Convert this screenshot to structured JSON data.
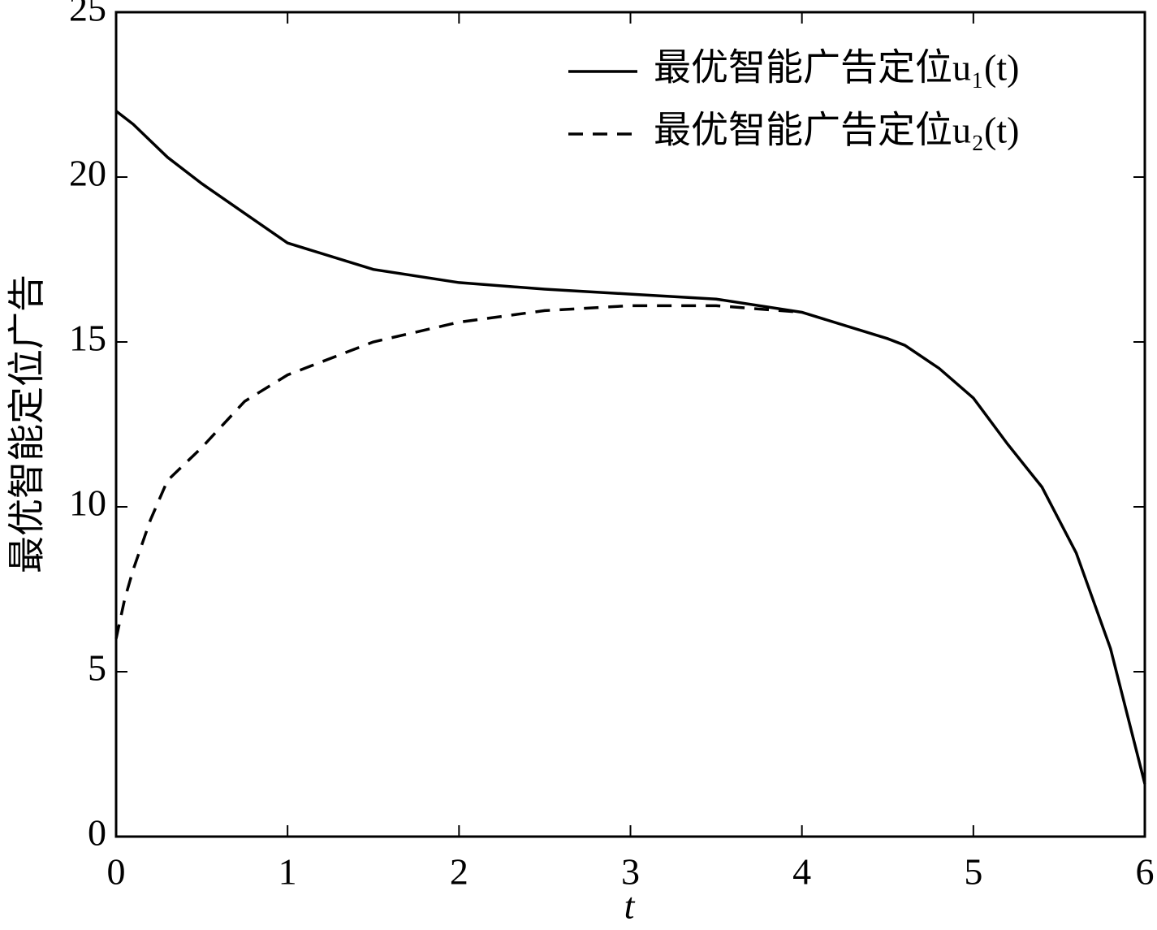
{
  "chart_data": {
    "type": "line",
    "x_label": "t",
    "y_label": "最优智能定位广告",
    "x": [
      0,
      0.05,
      0.1,
      0.2,
      0.3,
      0.5,
      0.75,
      1,
      1.5,
      2,
      2.5,
      3,
      3.5,
      4,
      4.5,
      4.6,
      4.8,
      5,
      5.2,
      5.4,
      5.6,
      5.8,
      6
    ],
    "series": [
      {
        "name": "最优智能广告定位u₁(t)",
        "color": "#000000",
        "dash": "solid",
        "values": [
          22,
          21.8,
          21.6,
          21.1,
          20.6,
          19.8,
          18.9,
          18.0,
          17.2,
          16.8,
          16.6,
          16.45,
          16.3,
          15.9,
          15.1,
          14.9,
          14.2,
          13.3,
          11.9,
          10.6,
          8.6,
          5.7,
          1.6
        ]
      },
      {
        "name": "最优智能广告定位u₂(t)",
        "color": "#000000",
        "dash": "dashed",
        "values": [
          6.0,
          7.2,
          8.1,
          9.6,
          10.8,
          11.8,
          13.2,
          14.0,
          15.0,
          15.6,
          15.95,
          16.1,
          16.1,
          15.9,
          null,
          null,
          null,
          null,
          null,
          null,
          null,
          null,
          null
        ]
      }
    ],
    "xlim": [
      0,
      6
    ],
    "xticks": [
      0,
      1,
      2,
      3,
      4,
      5,
      6
    ],
    "ylim": [
      0,
      25
    ],
    "yticks": [
      0,
      5,
      10,
      15,
      20,
      25
    ],
    "grid": false,
    "legend": "upper right"
  }
}
